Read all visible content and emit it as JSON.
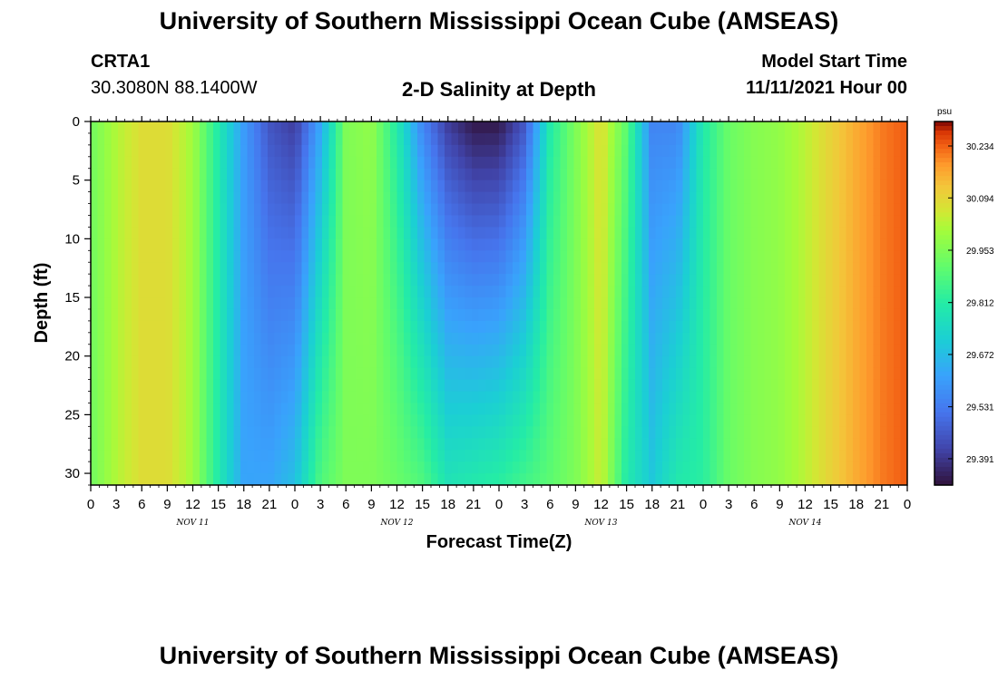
{
  "header": {
    "title": "University of Southern Mississippi Ocean Cube (AMSEAS)",
    "station": "CRTA1",
    "coords": "30.3080N  88.1400W",
    "chart_title": "2-D Salinity at Depth",
    "model_label": "Model Start Time",
    "model_time": "11/11/2021 Hour 00"
  },
  "footer": {
    "title": "University of Southern Mississippi Ocean Cube (AMSEAS)"
  },
  "chart_data": {
    "type": "heatmap",
    "title": "2-D Salinity at Depth",
    "xlabel": "Forecast Time(Z)",
    "ylabel": "Depth (ft)",
    "x_range_hours": [
      0,
      96
    ],
    "y_range_ft": [
      0,
      31
    ],
    "y_inverted": true,
    "x_tick_labels": [
      "0",
      "3",
      "6",
      "9",
      "12",
      "15",
      "18",
      "21",
      "0",
      "3",
      "6",
      "9",
      "12",
      "15",
      "18",
      "21",
      "0",
      "3",
      "6",
      "9",
      "12",
      "15",
      "18",
      "21",
      "0",
      "3",
      "6",
      "9",
      "12",
      "15",
      "18",
      "21",
      "0"
    ],
    "x_tick_hours": [
      0,
      3,
      6,
      9,
      12,
      15,
      18,
      21,
      24,
      27,
      30,
      33,
      36,
      39,
      42,
      45,
      48,
      51,
      54,
      57,
      60,
      63,
      66,
      69,
      72,
      75,
      78,
      81,
      84,
      87,
      90,
      93,
      96
    ],
    "day_labels": [
      {
        "label": "NOV 11",
        "hour": 12
      },
      {
        "label": "NOV 12",
        "hour": 36
      },
      {
        "label": "NOV 13",
        "hour": 60
      },
      {
        "label": "NOV 14",
        "hour": 84
      }
    ],
    "y_ticks": [
      0,
      5,
      10,
      15,
      20,
      25,
      30
    ],
    "colorbar": {
      "unit": "psu",
      "ticks": [
        30.234,
        30.094,
        29.953,
        29.812,
        29.672,
        29.531,
        29.391
      ],
      "range": [
        29.32,
        30.3
      ]
    },
    "legend_placement": "right",
    "salinity_profile_psu": {
      "columns_hours": [
        0,
        3,
        6,
        9,
        12,
        15,
        18,
        21,
        24,
        27,
        30,
        33,
        36,
        39,
        42,
        45,
        48,
        51,
        54,
        57,
        60,
        63,
        66,
        69,
        72,
        75,
        78,
        81,
        84,
        87,
        90,
        93,
        96
      ],
      "note": "",
      "surface": [
        29.93,
        30.02,
        30.08,
        30.08,
        30.0,
        29.8,
        29.6,
        29.45,
        29.4,
        29.62,
        29.95,
        29.98,
        29.8,
        29.55,
        29.4,
        29.33,
        29.33,
        29.45,
        29.8,
        29.95,
        30.08,
        29.9,
        29.55,
        29.55,
        29.8,
        29.92,
        29.96,
        29.98,
        30.03,
        30.1,
        30.16,
        30.21,
        30.24
      ],
      "bottom": [
        29.93,
        30.02,
        30.08,
        30.08,
        30.0,
        29.8,
        29.62,
        29.62,
        29.68,
        29.88,
        29.95,
        29.95,
        29.92,
        29.88,
        29.78,
        29.8,
        29.82,
        29.86,
        29.9,
        29.95,
        30.05,
        29.8,
        29.7,
        29.8,
        29.82,
        29.92,
        29.96,
        29.98,
        30.03,
        30.1,
        30.16,
        30.21,
        30.24
      ]
    }
  }
}
